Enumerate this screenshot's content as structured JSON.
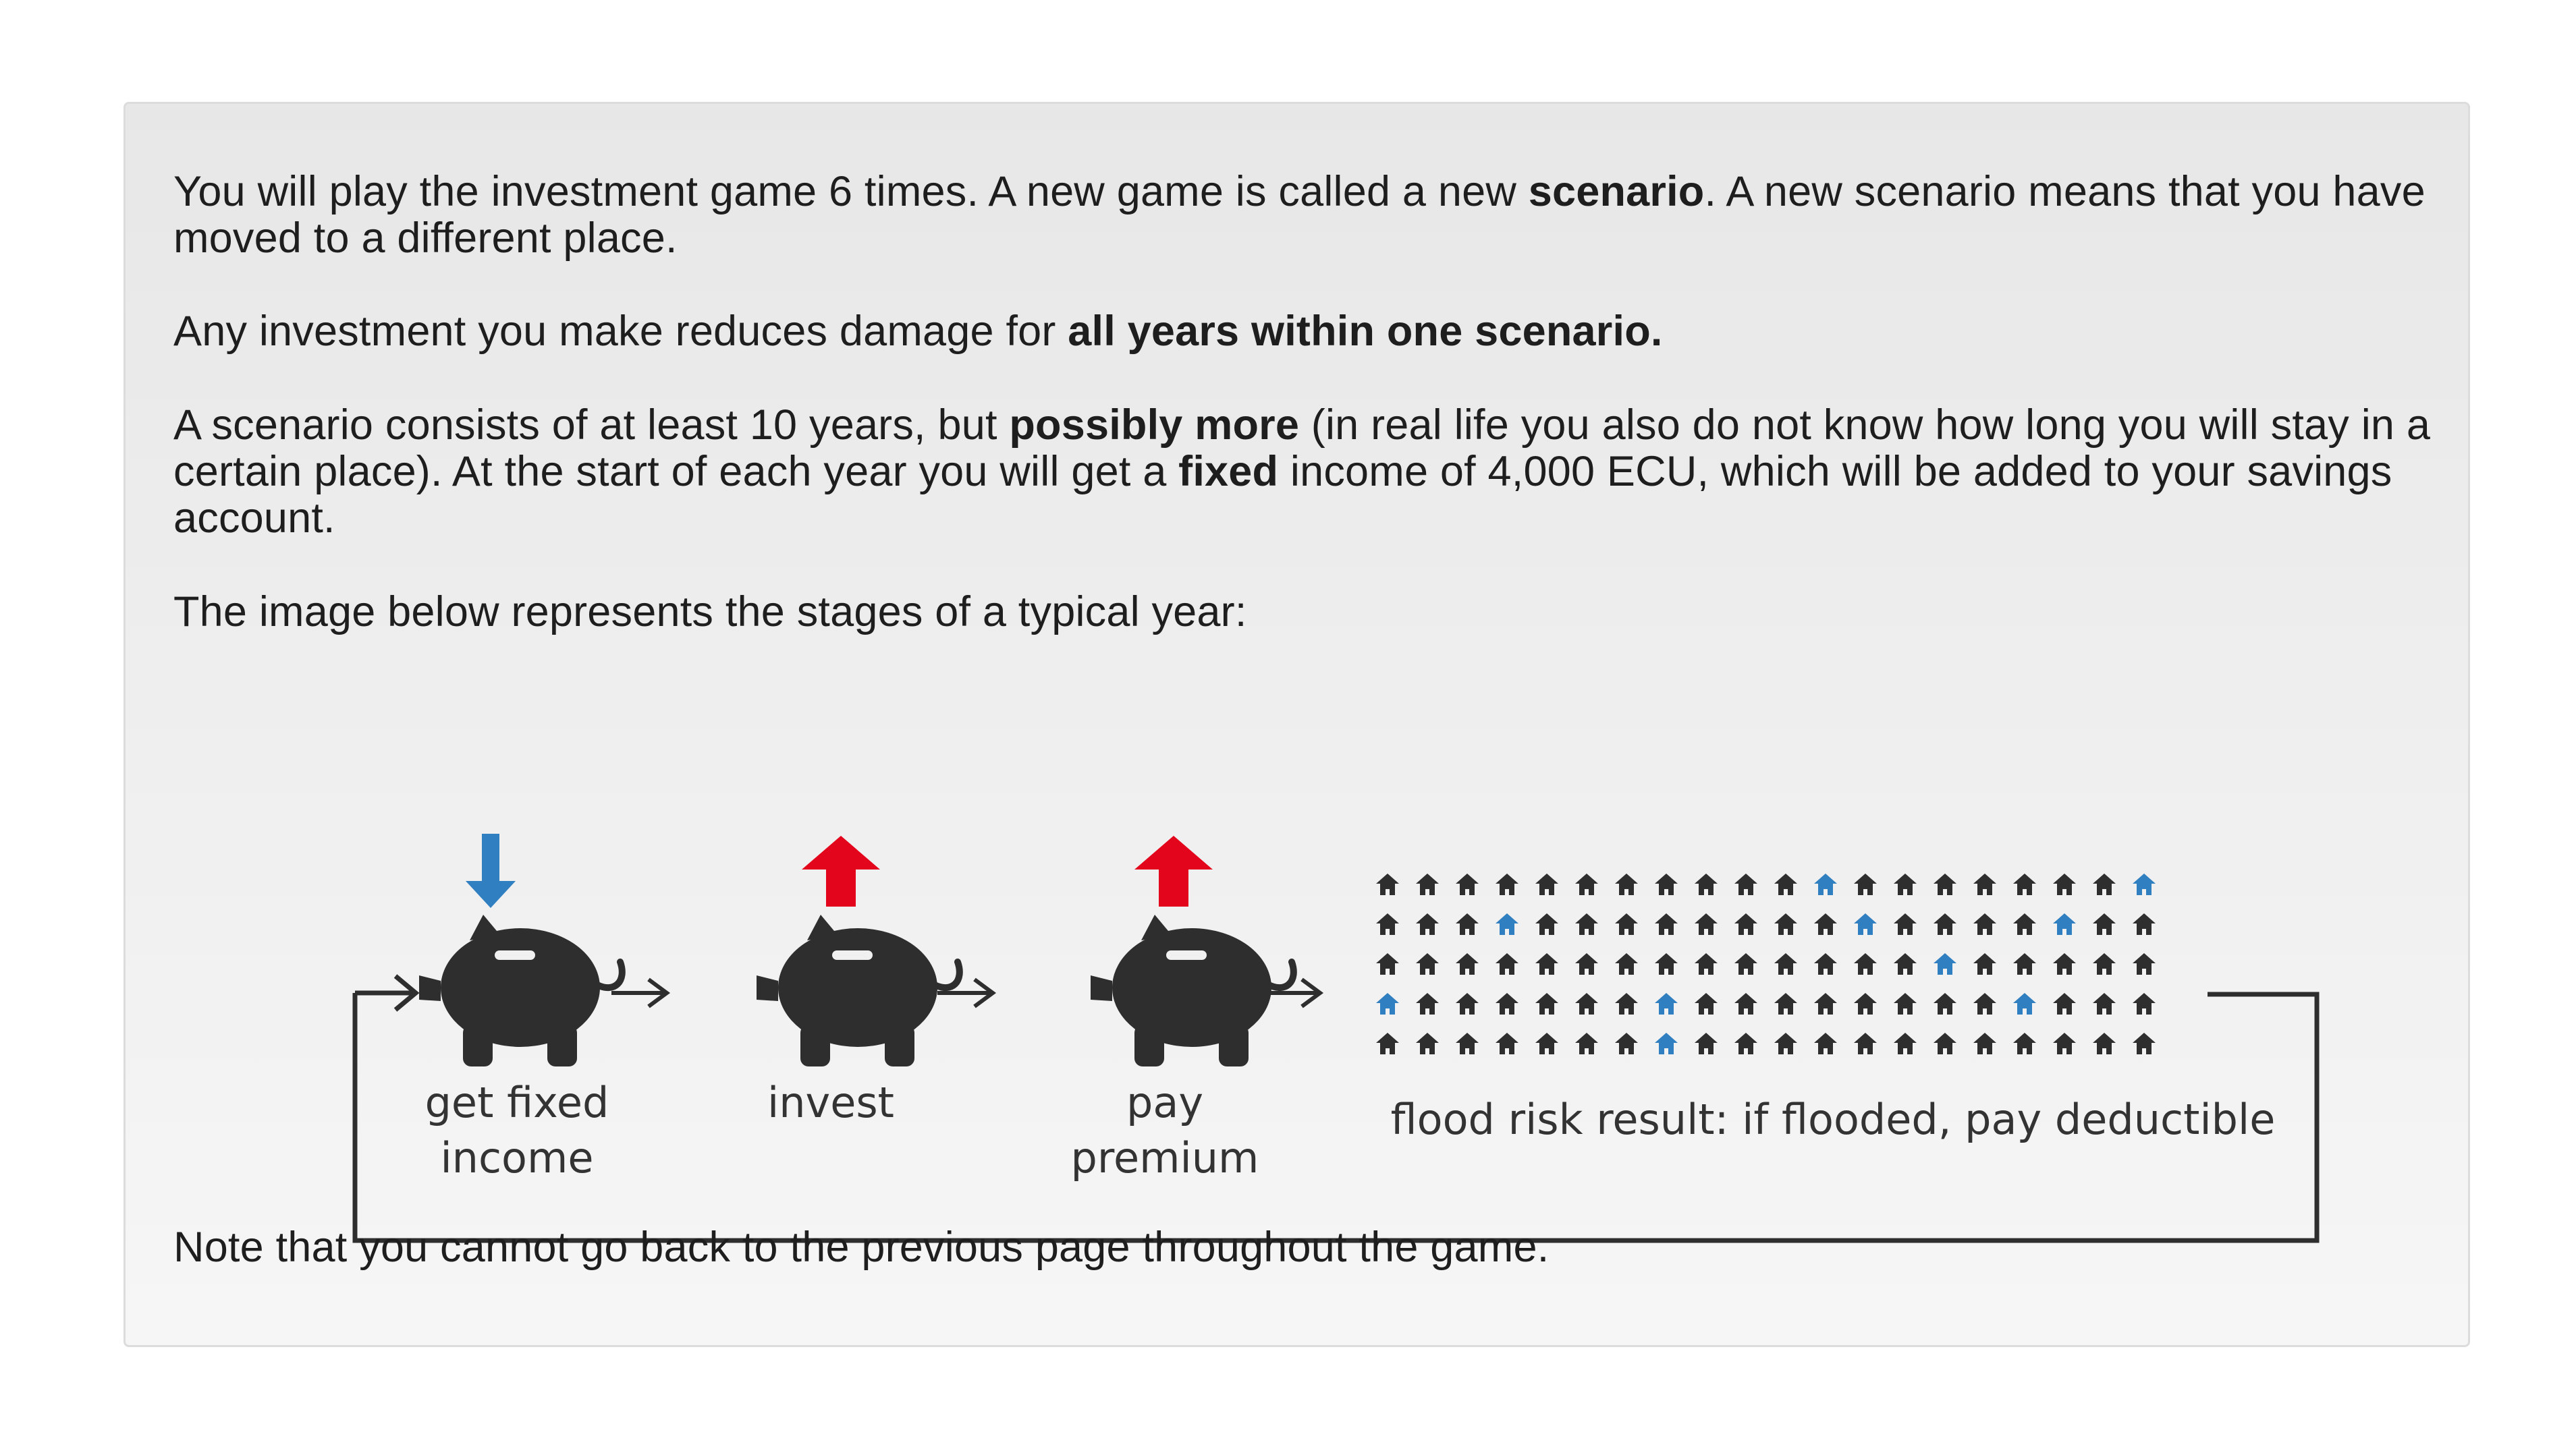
{
  "instructions": {
    "p1": {
      "before": "You will play the investment game 6 times. A new game is called a new ",
      "bold": "scenario",
      "after": ". A new scenario means that you have moved to a different place."
    },
    "p2": {
      "before": "Any investment you make reduces damage for ",
      "bold": "all years within one scenario."
    },
    "p3": {
      "before": "A scenario consists of at least 10 years, but ",
      "bold1": "possibly more",
      "middle": " (in real life you also do not know how long you will stay in a certain place). At the start of each year you will get a ",
      "bold2": "fixed",
      "after": " income of 4,000 ECU, which will be added to your savings account."
    },
    "p4": "The image below represents the stages of a typical year:",
    "p5": "Note that you cannot go back to the previous page throughout the game."
  },
  "diagram": {
    "stages": [
      {
        "label": "get fixed\nincome",
        "icon": "piggy-bank-icon",
        "arrow": "down-arrow-icon",
        "arrow_color": "#2f7fc1"
      },
      {
        "label": "invest",
        "icon": "piggy-bank-icon",
        "arrow": "up-arrow-icon",
        "arrow_color": "#e3051b"
      },
      {
        "label": "pay\npremium",
        "icon": "piggy-bank-icon",
        "arrow": "up-arrow-icon",
        "arrow_color": "#e3051b"
      }
    ],
    "flood_label": "flood risk result: if flooded, pay deductible",
    "house_grid": {
      "rows": 5,
      "cols": 20,
      "house_color": "#2e2e2e",
      "flooded_color": "#2f7fc1",
      "flooded": [
        [
          0,
          11
        ],
        [
          0,
          19
        ],
        [
          1,
          3
        ],
        [
          1,
          12
        ],
        [
          1,
          17
        ],
        [
          2,
          14
        ],
        [
          3,
          0
        ],
        [
          3,
          7
        ],
        [
          3,
          16
        ],
        [
          4,
          7
        ]
      ]
    },
    "piggy_color": "#2e2e2e"
  }
}
